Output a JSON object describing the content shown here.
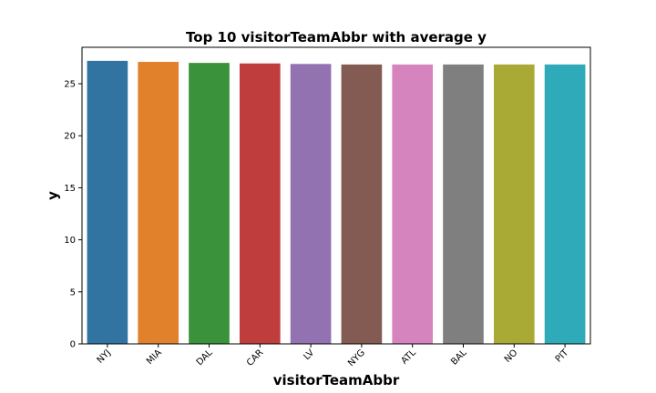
{
  "chart_data": {
    "type": "bar",
    "title": "Top 10 visitorTeamAbbr with average y",
    "xlabel": "visitorTeamAbbr",
    "ylabel": "y",
    "categories": [
      "NYJ",
      "MIA",
      "DAL",
      "CAR",
      "LV",
      "NYG",
      "ATL",
      "BAL",
      "NO",
      "PIT"
    ],
    "values": [
      27.2,
      27.1,
      27.0,
      26.95,
      26.9,
      26.85,
      26.85,
      26.85,
      26.85,
      26.85
    ],
    "colors": [
      "#3274a1",
      "#e1812c",
      "#3a923a",
      "#c03d3e",
      "#9372b2",
      "#845b53",
      "#d684bd",
      "#7f7f7f",
      "#a9aa35",
      "#2eaab8"
    ],
    "ylim": [
      0,
      28.5
    ],
    "yticks": [
      0,
      5,
      10,
      15,
      20,
      25
    ],
    "ytick_labels": [
      "0",
      "5",
      "10",
      "15",
      "20",
      "25"
    ],
    "grid": false,
    "legend": "none"
  }
}
